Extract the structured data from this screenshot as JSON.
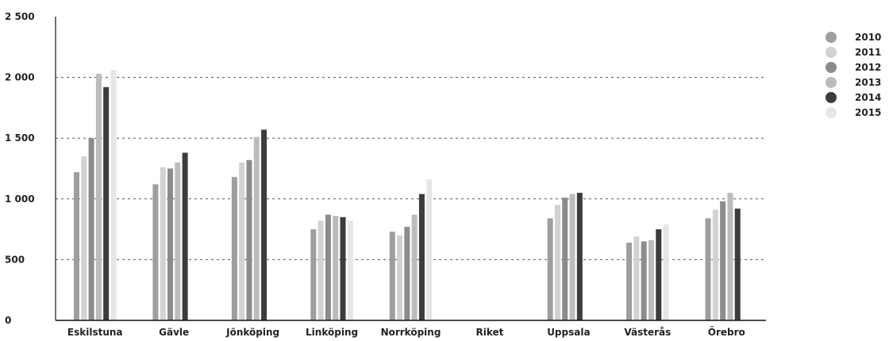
{
  "chart_data": {
    "type": "bar",
    "categories": [
      "Eskilstuna",
      "Gävle",
      "Jönköping",
      "Linköping",
      "Norrköping",
      "Riket",
      "Uppsala",
      "Västerås",
      "Örebro"
    ],
    "series": [
      {
        "name": "2010",
        "color": "#9e9e9e",
        "values": [
          1220,
          1120,
          1180,
          750,
          730,
          null,
          840,
          640,
          840
        ]
      },
      {
        "name": "2011",
        "color": "#d2d2d2",
        "values": [
          1350,
          1260,
          1300,
          820,
          700,
          null,
          950,
          690,
          910
        ]
      },
      {
        "name": "2012",
        "color": "#8c8c8c",
        "values": [
          1500,
          1250,
          1320,
          870,
          770,
          null,
          1010,
          650,
          980
        ]
      },
      {
        "name": "2013",
        "color": "#bcbcbc",
        "values": [
          2030,
          1300,
          1510,
          860,
          870,
          null,
          1040,
          660,
          1050
        ]
      },
      {
        "name": "2014",
        "color": "#3c3c3c",
        "values": [
          1920,
          1380,
          1570,
          850,
          1040,
          null,
          1050,
          750,
          920
        ]
      },
      {
        "name": "2015",
        "color": "#e6e6e6",
        "values": [
          2060,
          null,
          null,
          820,
          1160,
          null,
          null,
          790,
          null
        ]
      }
    ],
    "yticks": [
      0,
      500,
      1000,
      1500,
      2000,
      2500
    ],
    "ytick_labels": [
      "0",
      "500",
      "1 000",
      "1 500",
      "2 000",
      "2 500"
    ],
    "ylim": [
      0,
      2500
    ],
    "grid": "horizontal dashed",
    "legend_position": "right",
    "title": "",
    "xlabel": "",
    "ylabel": ""
  }
}
